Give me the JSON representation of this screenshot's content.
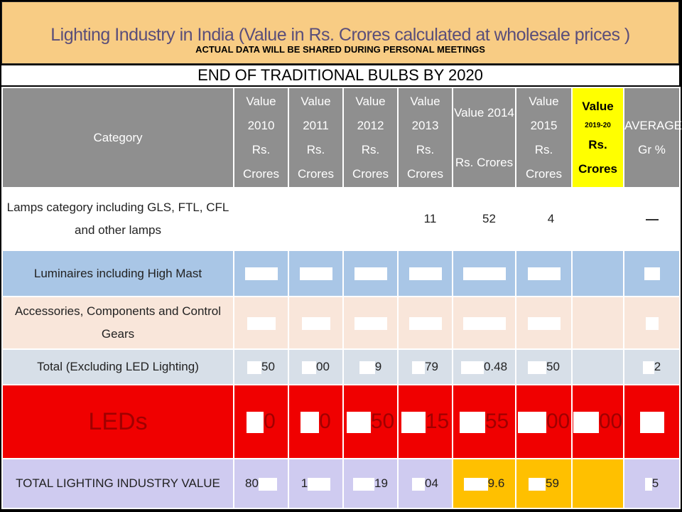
{
  "banner": {
    "title": "Lighting Industry in India (Value in Rs. Crores calculated at wholesale prices )",
    "subtitle": "ACTUAL DATA WILL BE SHARED DURING PERSONAL MEETINGS"
  },
  "band": {
    "text": "END OF TRADITIONAL BULBS BY 2020"
  },
  "headers": {
    "category": "Category",
    "c2010": [
      "Value",
      "2010",
      "Rs.",
      "Crores"
    ],
    "c2011": [
      "Value",
      "2011",
      "Rs.",
      "Crores"
    ],
    "c2012": [
      "Value",
      "2012",
      "Rs.",
      "Crores"
    ],
    "c2013": [
      "Value",
      "2013",
      "Rs.",
      "Crores"
    ],
    "c2014": [
      "Value 2014",
      "Rs. Crores"
    ],
    "c2015": [
      "Value",
      "2015",
      "Rs. Crores"
    ],
    "c2019": [
      "Value",
      "2019-20",
      "Rs.",
      "Crores"
    ],
    "avg": [
      "AVERAGE",
      "Gr %"
    ]
  },
  "rows": [
    {
      "category": "Lamps category including GLS, FTL, CFL and other lamps",
      "values": [
        "",
        "",
        "",
        "11",
        "52",
        "4",
        "",
        ""
      ]
    },
    {
      "category": "Luminaires including High Mast",
      "values": [
        "",
        "",
        "",
        "",
        "",
        "",
        "",
        ""
      ]
    },
    {
      "category": "Accessories, Components and Control Gears",
      "values": [
        "",
        "",
        "",
        "",
        "",
        "",
        "",
        ""
      ]
    },
    {
      "category": "Total (Excluding LED Lighting)",
      "values": [
        "50",
        "00",
        "9",
        "79",
        "0.48",
        "50",
        "",
        "2"
      ]
    },
    {
      "category": "LEDs",
      "values": [
        "0",
        "0",
        "50",
        "15",
        "55",
        "00",
        "00",
        ""
      ]
    },
    {
      "category": "TOTAL LIGHTING INDUSTRY VALUE",
      "values": [
        "80",
        "1",
        "19",
        "04",
        "9.6",
        "59",
        "",
        "5"
      ]
    }
  ]
}
